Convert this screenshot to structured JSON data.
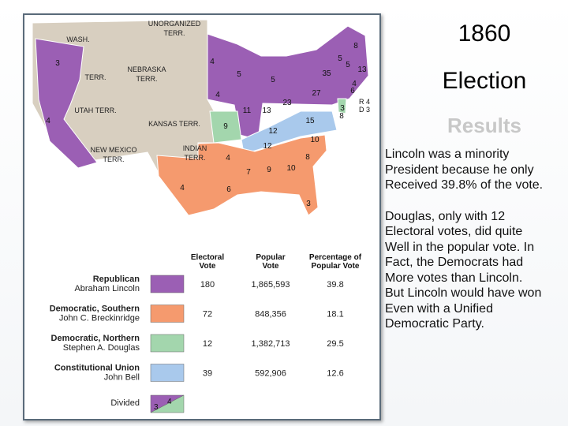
{
  "slide": {
    "title_lines": [
      "1860",
      "Election",
      "Results"
    ],
    "paragraphs": [
      [
        "Lincoln was a minority",
        "President because he only",
        "Received 39.8% of the vote."
      ],
      [
        "Douglas, only with 12",
        "Electoral votes, did quite",
        "Well in the popular vote.  In",
        "Fact, the Democrats had",
        "More votes than Lincoln.",
        "But Lincoln would have won",
        "Even with a Unified",
        "Democratic Party."
      ]
    ]
  },
  "map": {
    "territories": [
      [
        "UNORGANIZED",
        "TERR."
      ],
      [
        "WASH."
      ],
      [
        "TERR."
      ],
      [
        "NEBRASKA",
        "TERR."
      ],
      [
        "UTAH TERR."
      ],
      [
        "KANSAS TERR."
      ],
      [
        "NEW MEXICO",
        "TERR."
      ],
      [
        "INDIAN",
        "TERR."
      ]
    ],
    "state_votes": [
      3,
      4,
      4,
      5,
      5,
      4,
      11,
      13,
      23,
      27,
      35,
      8,
      5,
      5,
      13,
      4,
      6,
      3,
      8,
      9,
      12,
      15,
      10,
      12,
      8,
      4,
      7,
      9,
      10,
      6,
      4,
      3
    ],
    "split_labels": [
      "R 4",
      "D 3"
    ]
  },
  "table": {
    "headers": [
      [
        "Electoral",
        "Vote"
      ],
      [
        "Popular",
        "Vote"
      ],
      [
        "Percentage of",
        "Popular Vote"
      ]
    ],
    "rows": [
      {
        "party": "Republican",
        "candidate": "Abraham Lincoln",
        "color": "#9b5fb4",
        "electoral": 180,
        "popular": "1,865,593",
        "percent": 39.8
      },
      {
        "party": "Democratic, Southern",
        "candidate": "John C. Breckinridge",
        "color": "#f59a6e",
        "electoral": 72,
        "popular": "848,356",
        "percent": 18.1
      },
      {
        "party": "Democratic, Northern",
        "candidate": "Stephen A. Douglas",
        "color": "#a3d6ad",
        "electoral": 12,
        "popular": "1,382,713",
        "percent": 29.5
      },
      {
        "party": "Constitutional Union",
        "candidate": "John Bell",
        "color": "#a9c9ec",
        "electoral": 39,
        "popular": "592,906",
        "percent": 12.6
      }
    ],
    "divided": {
      "label": "Divided",
      "votes": [
        3,
        4
      ]
    }
  }
}
